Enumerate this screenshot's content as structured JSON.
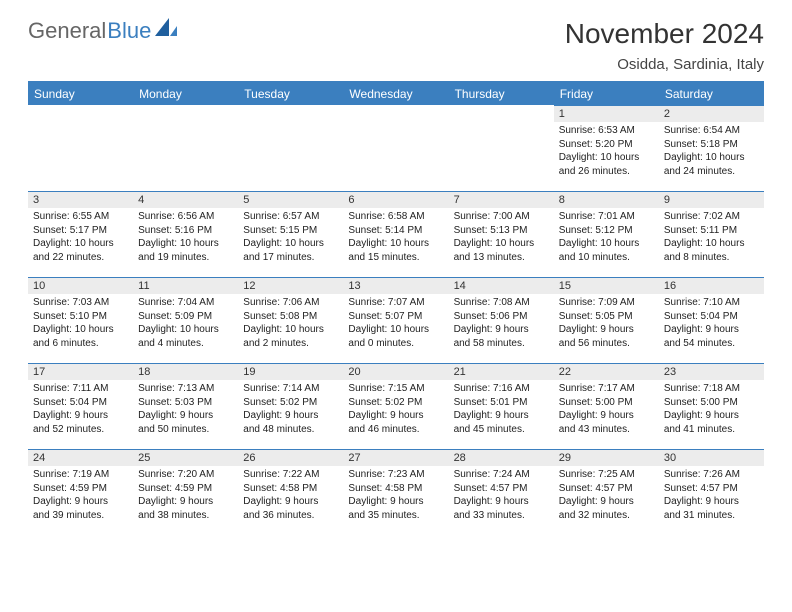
{
  "logo": {
    "word1": "General",
    "word2": "Blue"
  },
  "title": "November 2024",
  "location": "Osidda, Sardinia, Italy",
  "colors": {
    "accent": "#3b7fbf",
    "header_bg": "#3b7fbf",
    "header_text": "#ffffff",
    "daynum_bg": "#ececec",
    "body_text": "#222222"
  },
  "weekdays": [
    "Sunday",
    "Monday",
    "Tuesday",
    "Wednesday",
    "Thursday",
    "Friday",
    "Saturday"
  ],
  "weeks": [
    [
      null,
      null,
      null,
      null,
      null,
      {
        "n": "1",
        "sunrise": "6:53 AM",
        "sunset": "5:20 PM",
        "dayl1": "10 hours",
        "dayl2": "and 26 minutes."
      },
      {
        "n": "2",
        "sunrise": "6:54 AM",
        "sunset": "5:18 PM",
        "dayl1": "10 hours",
        "dayl2": "and 24 minutes."
      }
    ],
    [
      {
        "n": "3",
        "sunrise": "6:55 AM",
        "sunset": "5:17 PM",
        "dayl1": "10 hours",
        "dayl2": "and 22 minutes."
      },
      {
        "n": "4",
        "sunrise": "6:56 AM",
        "sunset": "5:16 PM",
        "dayl1": "10 hours",
        "dayl2": "and 19 minutes."
      },
      {
        "n": "5",
        "sunrise": "6:57 AM",
        "sunset": "5:15 PM",
        "dayl1": "10 hours",
        "dayl2": "and 17 minutes."
      },
      {
        "n": "6",
        "sunrise": "6:58 AM",
        "sunset": "5:14 PM",
        "dayl1": "10 hours",
        "dayl2": "and 15 minutes."
      },
      {
        "n": "7",
        "sunrise": "7:00 AM",
        "sunset": "5:13 PM",
        "dayl1": "10 hours",
        "dayl2": "and 13 minutes."
      },
      {
        "n": "8",
        "sunrise": "7:01 AM",
        "sunset": "5:12 PM",
        "dayl1": "10 hours",
        "dayl2": "and 10 minutes."
      },
      {
        "n": "9",
        "sunrise": "7:02 AM",
        "sunset": "5:11 PM",
        "dayl1": "10 hours",
        "dayl2": "and 8 minutes."
      }
    ],
    [
      {
        "n": "10",
        "sunrise": "7:03 AM",
        "sunset": "5:10 PM",
        "dayl1": "10 hours",
        "dayl2": "and 6 minutes."
      },
      {
        "n": "11",
        "sunrise": "7:04 AM",
        "sunset": "5:09 PM",
        "dayl1": "10 hours",
        "dayl2": "and 4 minutes."
      },
      {
        "n": "12",
        "sunrise": "7:06 AM",
        "sunset": "5:08 PM",
        "dayl1": "10 hours",
        "dayl2": "and 2 minutes."
      },
      {
        "n": "13",
        "sunrise": "7:07 AM",
        "sunset": "5:07 PM",
        "dayl1": "10 hours",
        "dayl2": "and 0 minutes."
      },
      {
        "n": "14",
        "sunrise": "7:08 AM",
        "sunset": "5:06 PM",
        "dayl1": "9 hours",
        "dayl2": "and 58 minutes."
      },
      {
        "n": "15",
        "sunrise": "7:09 AM",
        "sunset": "5:05 PM",
        "dayl1": "9 hours",
        "dayl2": "and 56 minutes."
      },
      {
        "n": "16",
        "sunrise": "7:10 AM",
        "sunset": "5:04 PM",
        "dayl1": "9 hours",
        "dayl2": "and 54 minutes."
      }
    ],
    [
      {
        "n": "17",
        "sunrise": "7:11 AM",
        "sunset": "5:04 PM",
        "dayl1": "9 hours",
        "dayl2": "and 52 minutes."
      },
      {
        "n": "18",
        "sunrise": "7:13 AM",
        "sunset": "5:03 PM",
        "dayl1": "9 hours",
        "dayl2": "and 50 minutes."
      },
      {
        "n": "19",
        "sunrise": "7:14 AM",
        "sunset": "5:02 PM",
        "dayl1": "9 hours",
        "dayl2": "and 48 minutes."
      },
      {
        "n": "20",
        "sunrise": "7:15 AM",
        "sunset": "5:02 PM",
        "dayl1": "9 hours",
        "dayl2": "and 46 minutes."
      },
      {
        "n": "21",
        "sunrise": "7:16 AM",
        "sunset": "5:01 PM",
        "dayl1": "9 hours",
        "dayl2": "and 45 minutes."
      },
      {
        "n": "22",
        "sunrise": "7:17 AM",
        "sunset": "5:00 PM",
        "dayl1": "9 hours",
        "dayl2": "and 43 minutes."
      },
      {
        "n": "23",
        "sunrise": "7:18 AM",
        "sunset": "5:00 PM",
        "dayl1": "9 hours",
        "dayl2": "and 41 minutes."
      }
    ],
    [
      {
        "n": "24",
        "sunrise": "7:19 AM",
        "sunset": "4:59 PM",
        "dayl1": "9 hours",
        "dayl2": "and 39 minutes."
      },
      {
        "n": "25",
        "sunrise": "7:20 AM",
        "sunset": "4:59 PM",
        "dayl1": "9 hours",
        "dayl2": "and 38 minutes."
      },
      {
        "n": "26",
        "sunrise": "7:22 AM",
        "sunset": "4:58 PM",
        "dayl1": "9 hours",
        "dayl2": "and 36 minutes."
      },
      {
        "n": "27",
        "sunrise": "7:23 AM",
        "sunset": "4:58 PM",
        "dayl1": "9 hours",
        "dayl2": "and 35 minutes."
      },
      {
        "n": "28",
        "sunrise": "7:24 AM",
        "sunset": "4:57 PM",
        "dayl1": "9 hours",
        "dayl2": "and 33 minutes."
      },
      {
        "n": "29",
        "sunrise": "7:25 AM",
        "sunset": "4:57 PM",
        "dayl1": "9 hours",
        "dayl2": "and 32 minutes."
      },
      {
        "n": "30",
        "sunrise": "7:26 AM",
        "sunset": "4:57 PM",
        "dayl1": "9 hours",
        "dayl2": "and 31 minutes."
      }
    ]
  ],
  "labels": {
    "sunrise": "Sunrise:",
    "sunset": "Sunset:",
    "daylight": "Daylight:"
  }
}
